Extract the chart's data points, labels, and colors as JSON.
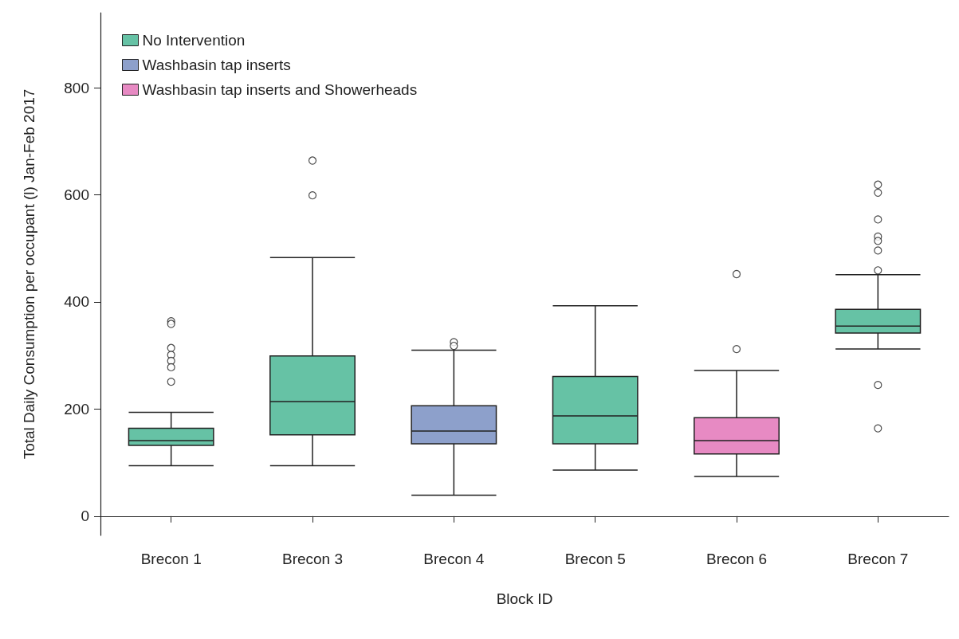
{
  "chart_data": {
    "type": "box",
    "xlabel": "Block ID",
    "ylabel": "Total Daily Consumption per occupant (l) Jan-Feb 2017",
    "categories": [
      "Brecon 1",
      "Brecon 3",
      "Brecon 4",
      "Brecon 5",
      "Brecon 6",
      "Brecon 7"
    ],
    "ylim": [
      -36,
      940
    ],
    "yticks": [
      0,
      200,
      400,
      600,
      800
    ],
    "legend": "top left",
    "grid": false,
    "series": [
      {
        "name": "No Intervention",
        "color": "#66c2a5",
        "boxes": [
          {
            "low": 94,
            "q1": 132,
            "median": 141,
            "q3": 164,
            "high": 194,
            "outliers": [
              364,
              359,
              314,
              301,
              290,
              278,
              251
            ]
          },
          {
            "low": 94,
            "q1": 152,
            "median": 214,
            "q3": 299,
            "high": 483,
            "outliers": [
              664,
              599
            ]
          },
          null,
          {
            "low": 86,
            "q1": 135,
            "median": 187,
            "q3": 261,
            "high": 393
          },
          null,
          {
            "low": 312,
            "q1": 342,
            "median": 355,
            "q3": 386,
            "high": 451,
            "outliers": [
              619,
              604,
              554,
              522,
              514,
              496,
              459,
              245,
              164
            ]
          }
        ]
      },
      {
        "name": "Washbasin tap inserts",
        "color": "#8da0cb",
        "boxes": [
          null,
          null,
          {
            "low": 39,
            "q1": 135,
            "median": 159,
            "q3": 206,
            "high": 310,
            "outliers": [
              325,
              318
            ]
          },
          null,
          null,
          null
        ]
      },
      {
        "name": "Washbasin tap inserts and Showerheads",
        "color": "#e78ac3",
        "boxes": [
          null,
          null,
          null,
          null,
          {
            "low": 74,
            "q1": 116,
            "median": 141,
            "q3": 184,
            "high": 272,
            "outliers": [
              452,
              312
            ]
          },
          null
        ]
      }
    ]
  }
}
